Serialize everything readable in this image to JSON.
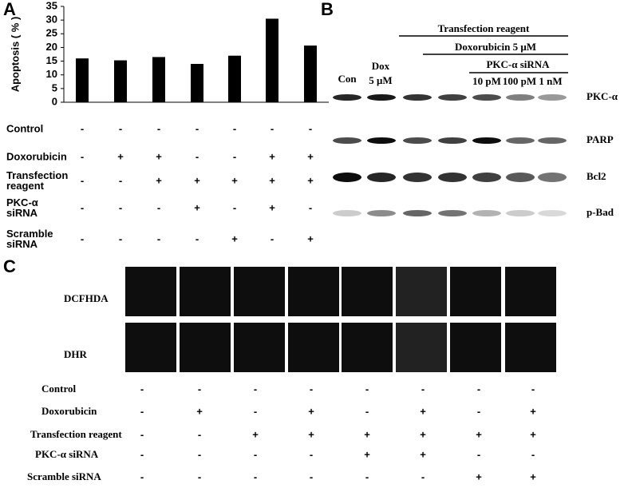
{
  "chart_data": {
    "type": "bar",
    "panel_label": "A",
    "ylabel": "Apoptosis ( % )",
    "categories": [
      null,
      null,
      null,
      null,
      null,
      null,
      null
    ],
    "values": [
      16,
      15.3,
      16.5,
      14,
      17,
      30.5,
      20.7
    ],
    "color": "#000000",
    "ylim": [
      0,
      35
    ],
    "yticks": [
      0,
      5,
      10,
      15,
      20,
      25,
      30,
      35
    ]
  },
  "panel_a_conditions": [
    {
      "label": [
        "Control"
      ],
      "marks": [
        "-",
        "-",
        "-",
        "-",
        "-",
        "-",
        "-"
      ]
    },
    {
      "label": [
        "Doxorubicin"
      ],
      "marks": [
        "-",
        "+",
        "+",
        "-",
        "-",
        "+",
        "+"
      ]
    },
    {
      "label": [
        "Transfection",
        "reagent"
      ],
      "marks": [
        "-",
        "-",
        "+",
        "+",
        "+",
        "+",
        "+"
      ]
    },
    {
      "label": [
        "PKC-α",
        "siRNA"
      ],
      "marks": [
        "-",
        "-",
        "-",
        "+",
        "-",
        "+",
        "-"
      ]
    },
    {
      "label": [
        "Scramble",
        "siRNA"
      ],
      "marks": [
        "-",
        "-",
        "-",
        "-",
        "+",
        "-",
        "+"
      ]
    }
  ],
  "panel_b": {
    "panel_label": "B",
    "headers": [
      "Transfection reagent",
      "Doxorubicin 5 μM",
      "PKC-α siRNA"
    ],
    "lanes": [
      [
        "Con"
      ],
      [
        "Dox",
        "5 μM"
      ],
      [
        "10 pM"
      ],
      [
        "100 pM"
      ],
      [
        "1 nM"
      ]
    ],
    "proteins": [
      "PKC-α",
      "PARP",
      "Bcl2",
      "p-Bad"
    ]
  },
  "panel_c": {
    "panel_label": "C",
    "stains": [
      "DCFHDA",
      "DHR"
    ],
    "conditions": [
      {
        "label": "Control",
        "marks": [
          "-",
          "-",
          "-",
          "-",
          "-",
          "-",
          "-",
          "-"
        ]
      },
      {
        "label": "Doxorubicin",
        "marks": [
          "-",
          "+",
          "-",
          "+",
          "-",
          "+",
          "-",
          "+"
        ]
      },
      {
        "label": "Transfection reagent",
        "marks": [
          "-",
          "-",
          "+",
          "+",
          "+",
          "+",
          "+",
          "+"
        ]
      },
      {
        "label": "PKC-α siRNA",
        "marks": [
          "-",
          "-",
          "-",
          "-",
          "+",
          "+",
          "-",
          "-"
        ]
      },
      {
        "label": "Scramble siRNA",
        "marks": [
          "-",
          "-",
          "-",
          "-",
          "-",
          "-",
          "+",
          "+"
        ]
      }
    ]
  }
}
